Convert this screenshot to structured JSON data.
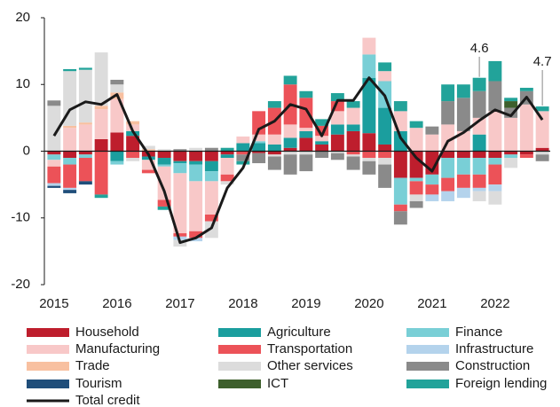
{
  "chart_data": {
    "type": "bar",
    "stacked": true,
    "categories": [
      "2015",
      null,
      null,
      null,
      "2016",
      null,
      null,
      null,
      "2017",
      null,
      null,
      null,
      "2018",
      null,
      null,
      null,
      "2019",
      null,
      null,
      null,
      "2020",
      null,
      null,
      null,
      "2021",
      null,
      null,
      null,
      "2022",
      null,
      null,
      null
    ],
    "ylim": [
      -20,
      20
    ],
    "yticks": [
      -20,
      -10,
      0,
      10,
      20
    ],
    "grid": false,
    "series": [
      {
        "name": "Household",
        "color": "#be1e2d",
        "values": [
          -0.5,
          -1,
          -0.5,
          1.8,
          2.8,
          2.3,
          -0.8,
          -1,
          -1.5,
          -1.5,
          -1.5,
          -0.5,
          0,
          -0.3,
          -0.5,
          0.5,
          2,
          1,
          2.5,
          3,
          2.7,
          1,
          -4,
          -4,
          -3.5,
          -1,
          -1,
          -1,
          -1,
          -0.5,
          -0.5,
          0.5
        ]
      },
      {
        "name": "Agriculture",
        "color": "#1b9e9e",
        "values": [
          0,
          0,
          0,
          0,
          -1.5,
          0.7,
          -0.5,
          -1,
          -0.3,
          -0.5,
          -1.5,
          -0.5,
          1.2,
          1.2,
          1,
          1.5,
          1,
          0.5,
          1.5,
          1,
          8.3,
          5.5,
          3,
          0,
          0,
          0,
          0,
          2.5,
          0,
          0,
          0,
          0
        ]
      },
      {
        "name": "Finance",
        "color": "#79cfd6",
        "values": [
          -0.8,
          -1,
          -0.5,
          0,
          -0.5,
          0,
          0,
          -0.3,
          -1.5,
          -2.5,
          -1.5,
          0,
          0,
          0.3,
          0,
          0,
          0,
          0,
          0,
          0,
          3.5,
          4,
          -4,
          -0.5,
          -1.5,
          -3,
          -2.5,
          -2.5,
          -1,
          -0.5,
          0,
          0
        ]
      },
      {
        "name": "Manufacturing",
        "color": "#f8c8c8",
        "values": [
          -1,
          3.5,
          4,
          4.5,
          5,
          1,
          -1.5,
          -5,
          -9,
          -7.5,
          -5,
          -2.5,
          1,
          1,
          1.5,
          2,
          0.5,
          0.8,
          2,
          2.5,
          2.5,
          1.5,
          3,
          3.5,
          2.5,
          4,
          3,
          2.5,
          6,
          5,
          7,
          5.5
        ]
      },
      {
        "name": "Transportation",
        "color": "#ec5258",
        "values": [
          -2.5,
          -3.5,
          -3.5,
          -6.5,
          0,
          -1,
          -0.5,
          -1,
          -0.5,
          -1,
          -1,
          -1,
          -0.5,
          3.5,
          4,
          6,
          4.5,
          1.5,
          1.5,
          -0.5,
          -1,
          -1,
          -1,
          -2,
          -1.5,
          -2,
          -2,
          -2,
          -3,
          0,
          -0.5,
          0
        ]
      },
      {
        "name": "Infrastructure",
        "color": "#b4d3ec",
        "values": [
          -0.4,
          -0.3,
          0,
          0,
          0,
          0,
          0,
          0,
          -0.5,
          -0.5,
          0,
          0,
          0,
          0,
          0,
          0,
          0,
          0,
          0,
          0,
          0,
          0,
          0,
          0,
          -1,
          -1.5,
          -1.5,
          -0.5,
          -1,
          0,
          0,
          0
        ]
      },
      {
        "name": "Trade",
        "color": "#f8c0a0",
        "values": [
          0,
          0.3,
          0.3,
          0.5,
          1,
          0.5,
          0.3,
          0,
          0,
          0,
          0,
          0,
          0,
          0,
          0,
          0,
          0,
          0,
          0,
          0,
          0,
          0,
          0,
          0,
          0,
          0,
          0,
          0,
          0,
          0,
          0,
          0
        ]
      },
      {
        "name": "Other services",
        "color": "#dcdcdc",
        "values": [
          6.8,
          8.2,
          7.9,
          8,
          1.2,
          -0.5,
          0.5,
          0.3,
          -1,
          0.5,
          -2.5,
          -0.5,
          0,
          0,
          -0.3,
          -0.5,
          -0.5,
          0,
          -0.3,
          -0.3,
          -0.5,
          -1,
          0,
          -1,
          0,
          0,
          0,
          -1.5,
          -2,
          -1.5,
          0,
          -0.5
        ]
      },
      {
        "name": "Construction",
        "color": "#8a8a8a",
        "values": [
          0.8,
          0,
          0,
          0,
          0.7,
          0,
          0,
          0,
          0.3,
          0,
          0.5,
          0,
          -1,
          -1.5,
          -2,
          -3,
          -2.5,
          -1,
          -1,
          -2,
          -2,
          -3.5,
          -2,
          -1,
          1.2,
          3.5,
          5,
          4,
          4.5,
          1.5,
          2,
          -1
        ]
      },
      {
        "name": "Tourism",
        "color": "#1f4e7a",
        "values": [
          -0.3,
          -0.5,
          -0.5,
          0,
          0,
          0,
          0,
          0,
          0,
          0,
          0,
          0,
          0,
          0,
          0,
          0,
          0,
          0,
          0,
          0,
          0,
          0,
          0,
          0,
          0,
          0,
          0,
          0,
          0,
          0,
          0,
          0
        ]
      },
      {
        "name": "ICT",
        "color": "#3d5f2c",
        "values": [
          0,
          0,
          0,
          0,
          0,
          0,
          0,
          0,
          0,
          0,
          0,
          0,
          0,
          0,
          0,
          0,
          0,
          0,
          0,
          0,
          0,
          0,
          0,
          0,
          0,
          0,
          0,
          0,
          0,
          1,
          0,
          0
        ]
      },
      {
        "name": "Foreign lending",
        "color": "#22a39a",
        "values": [
          0,
          0.3,
          0.3,
          -0.5,
          0,
          0,
          0,
          -0.5,
          0,
          0,
          0,
          0.5,
          -0.5,
          0,
          1,
          1.3,
          1,
          1,
          1.2,
          1,
          0,
          1.3,
          1.5,
          1,
          0,
          2.5,
          2,
          2,
          3,
          0.5,
          0.5,
          0.7
        ]
      },
      {
        "name": "Total credit",
        "type": "line",
        "color": "#1a1a1a",
        "values": [
          2.3,
          6.2,
          7.4,
          7.0,
          8.5,
          3.0,
          -0.5,
          -6,
          -13.7,
          -13,
          -11.5,
          -5.5,
          -2.5,
          3.3,
          4.5,
          7.0,
          6.3,
          2.3,
          7.6,
          7.6,
          11.0,
          8.3,
          2.0,
          -1.0,
          -3.0,
          1.5,
          2.8,
          4.6,
          6.2,
          5.3,
          8.1,
          4.7
        ],
        "value_labels": [
          null,
          null,
          null,
          null,
          null,
          null,
          null,
          null,
          null,
          null,
          null,
          null,
          null,
          null,
          null,
          null,
          null,
          null,
          null,
          null,
          null,
          null,
          null,
          null,
          null,
          null,
          null,
          "4.6",
          null,
          null,
          null,
          "4.7"
        ]
      }
    ]
  }
}
